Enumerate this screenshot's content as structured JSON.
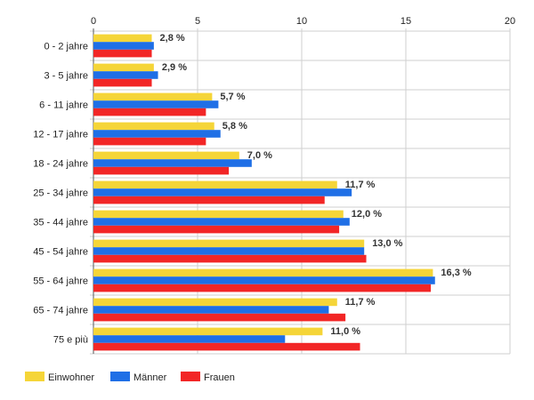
{
  "chart_data": {
    "type": "bar",
    "orientation": "horizontal",
    "categories": [
      "0 - 2 jahre",
      "3 - 5 jahre",
      "6 - 11 jahre",
      "12 - 17 jahre",
      "18 - 24 jahre",
      "25 - 34 jahre",
      "35 - 44 jahre",
      "45 - 54 jahre",
      "55 - 64 jahre",
      "65 - 74 jahre",
      "75 e più"
    ],
    "series": [
      {
        "name": "Einwohner",
        "color": "#f5d538",
        "values": [
          2.8,
          2.9,
          5.7,
          5.8,
          7.0,
          11.7,
          12.0,
          13.0,
          16.3,
          11.7,
          11.0
        ]
      },
      {
        "name": "Männer",
        "color": "#1f6fe6",
        "values": [
          2.9,
          3.1,
          6.0,
          6.1,
          7.6,
          12.4,
          12.3,
          13.0,
          16.4,
          11.3,
          9.2
        ]
      },
      {
        "name": "Frauen",
        "color": "#f22626",
        "values": [
          2.8,
          2.8,
          5.4,
          5.4,
          6.5,
          11.1,
          11.8,
          13.1,
          16.2,
          12.1,
          12.8
        ]
      }
    ],
    "data_labels": [
      "2,8 %",
      "2,9 %",
      "5,7 %",
      "5,8 %",
      "7,0 %",
      "11,7 %",
      "12,0 %",
      "13,0 %",
      "16,3 %",
      "11,7 %",
      "11,0 %"
    ],
    "x_ticks": [
      "0",
      "5",
      "10",
      "15",
      "20"
    ],
    "x_tick_values": [
      0,
      5,
      10,
      15,
      20
    ],
    "xlim": [
      0,
      20
    ],
    "grid": true,
    "legend_position": "bottom-left",
    "title": "",
    "xlabel": "",
    "ylabel": ""
  }
}
